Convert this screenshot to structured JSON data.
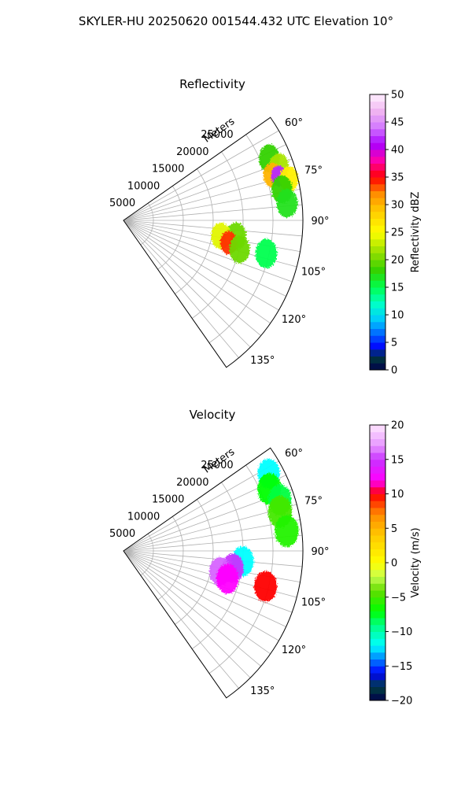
{
  "figure_title": "SKYLER-HU  20250620  001544.432 UTC Elevation 10°",
  "radial_axis_label": "Meters",
  "chart_data": [
    {
      "type": "polar-sector",
      "title": "Reflectivity",
      "azimuth_range_deg": [
        55,
        145
      ],
      "range_max_m": 30000,
      "range_ticks": [
        5000,
        10000,
        15000,
        20000,
        25000
      ],
      "range_tick_labels": [
        "5000",
        "10000",
        "15000",
        "20000",
        "25000"
      ],
      "azimuth_ticks": [
        60,
        75,
        90,
        105,
        120,
        135
      ],
      "azimuth_tick_labels": [
        "60°",
        "75°",
        "90°",
        "105°",
        "120°",
        "135°"
      ],
      "azimuth_gridlines_deg": [
        60,
        65,
        70,
        75,
        80,
        85,
        90,
        95,
        100,
        105,
        110,
        115,
        120,
        125,
        130,
        135,
        140
      ],
      "grid": true,
      "colorbar": {
        "label": "Reflectivity dBZ",
        "range": [
          0,
          50
        ],
        "ticks": [
          0,
          5,
          10,
          15,
          20,
          25,
          30,
          35,
          40,
          45,
          50
        ],
        "tick_labels": [
          "0",
          "5",
          "10",
          "15",
          "20",
          "25",
          "30",
          "35",
          "40",
          "45",
          "50"
        ],
        "color_stops": [
          {
            "value": 0,
            "color": "#00004a"
          },
          {
            "value": 2.5,
            "color": "#003c3c"
          },
          {
            "value": 4,
            "color": "#0000ff"
          },
          {
            "value": 7,
            "color": "#0078ff"
          },
          {
            "value": 9,
            "color": "#00c8ff"
          },
          {
            "value": 12,
            "color": "#00ffc8"
          },
          {
            "value": 15,
            "color": "#00ff50"
          },
          {
            "value": 18,
            "color": "#32d200"
          },
          {
            "value": 21,
            "color": "#8cdc00"
          },
          {
            "value": 25,
            "color": "#ffff00"
          },
          {
            "value": 29,
            "color": "#ffc800"
          },
          {
            "value": 32,
            "color": "#ff8c00"
          },
          {
            "value": 35,
            "color": "#ff0000"
          },
          {
            "value": 38,
            "color": "#ff00aa"
          },
          {
            "value": 41,
            "color": "#aa00ff"
          },
          {
            "value": 44,
            "color": "#d278ff"
          },
          {
            "value": 47,
            "color": "#f0b4f0"
          },
          {
            "value": 50,
            "color": "#fff0ff"
          }
        ]
      },
      "echoes": [
        {
          "azimuth_deg": 67,
          "range_m": 26500,
          "value": 18
        },
        {
          "azimuth_deg": 71,
          "range_m": 27500,
          "value": 22
        },
        {
          "azimuth_deg": 73,
          "range_m": 26000,
          "value": 30
        },
        {
          "azimuth_deg": 74,
          "range_m": 27000,
          "value": 42
        },
        {
          "azimuth_deg": 76,
          "range_m": 28500,
          "value": 26
        },
        {
          "azimuth_deg": 79,
          "range_m": 27000,
          "value": 18
        },
        {
          "azimuth_deg": 84,
          "range_m": 27500,
          "value": 17
        },
        {
          "azimuth_deg": 98,
          "range_m": 19000,
          "value": 20
        },
        {
          "azimuth_deg": 99,
          "range_m": 16500,
          "value": 24
        },
        {
          "azimuth_deg": 102,
          "range_m": 18000,
          "value": 34
        },
        {
          "azimuth_deg": 104,
          "range_m": 20000,
          "value": 20
        },
        {
          "azimuth_deg": 103,
          "range_m": 24500,
          "value": 15
        }
      ]
    },
    {
      "type": "polar-sector",
      "title": "Velocity",
      "azimuth_range_deg": [
        55,
        145
      ],
      "range_max_m": 30000,
      "range_ticks": [
        5000,
        10000,
        15000,
        20000,
        25000
      ],
      "range_tick_labels": [
        "5000",
        "10000",
        "15000",
        "20000",
        "25000"
      ],
      "azimuth_ticks": [
        60,
        75,
        90,
        105,
        120,
        135
      ],
      "azimuth_tick_labels": [
        "60°",
        "75°",
        "90°",
        "105°",
        "120°",
        "135°"
      ],
      "azimuth_gridlines_deg": [
        60,
        65,
        70,
        75,
        80,
        85,
        90,
        95,
        100,
        105,
        110,
        115,
        120,
        125,
        130,
        135,
        140
      ],
      "grid": true,
      "colorbar": {
        "label": "Velocity (m/s)",
        "range": [
          -20,
          20
        ],
        "ticks": [
          -20,
          -15,
          -10,
          -5,
          0,
          5,
          10,
          15,
          20
        ],
        "tick_labels": [
          "−20",
          "−15",
          "−10",
          "−5",
          "0",
          "5",
          "10",
          "15",
          "20"
        ],
        "color_stops": [
          {
            "value": -20,
            "color": "#00004a"
          },
          {
            "value": -18,
            "color": "#004040"
          },
          {
            "value": -16,
            "color": "#0000ff"
          },
          {
            "value": -14,
            "color": "#0080ff"
          },
          {
            "value": -12,
            "color": "#00ffff"
          },
          {
            "value": -9,
            "color": "#00ff80"
          },
          {
            "value": -7,
            "color": "#00ff00"
          },
          {
            "value": -4,
            "color": "#64dc00"
          },
          {
            "value": -2,
            "color": "#c8ff50"
          },
          {
            "value": 0,
            "color": "#ffff00"
          },
          {
            "value": 4,
            "color": "#ffc800"
          },
          {
            "value": 7,
            "color": "#ff8c00"
          },
          {
            "value": 10,
            "color": "#ff0000"
          },
          {
            "value": 12,
            "color": "#ff00ff"
          },
          {
            "value": 15,
            "color": "#c832ff"
          },
          {
            "value": 17,
            "color": "#e696ff"
          },
          {
            "value": 20,
            "color": "#ffe6ff"
          }
        ]
      },
      "echoes": [
        {
          "azimuth_deg": 62,
          "range_m": 27500,
          "value": -12
        },
        {
          "azimuth_deg": 67,
          "range_m": 26500,
          "value": -7
        },
        {
          "azimuth_deg": 72,
          "range_m": 27500,
          "value": -8
        },
        {
          "azimuth_deg": 76,
          "range_m": 27000,
          "value": -5
        },
        {
          "azimuth_deg": 83,
          "range_m": 27500,
          "value": -6
        },
        {
          "azimuth_deg": 95,
          "range_m": 20000,
          "value": -12
        },
        {
          "azimuth_deg": 99,
          "range_m": 18500,
          "value": 15
        },
        {
          "azimuth_deg": 102,
          "range_m": 16500,
          "value": 16
        },
        {
          "azimuth_deg": 105,
          "range_m": 18000,
          "value": 12
        },
        {
          "azimuth_deg": 104,
          "range_m": 24500,
          "value": 10
        }
      ]
    }
  ]
}
